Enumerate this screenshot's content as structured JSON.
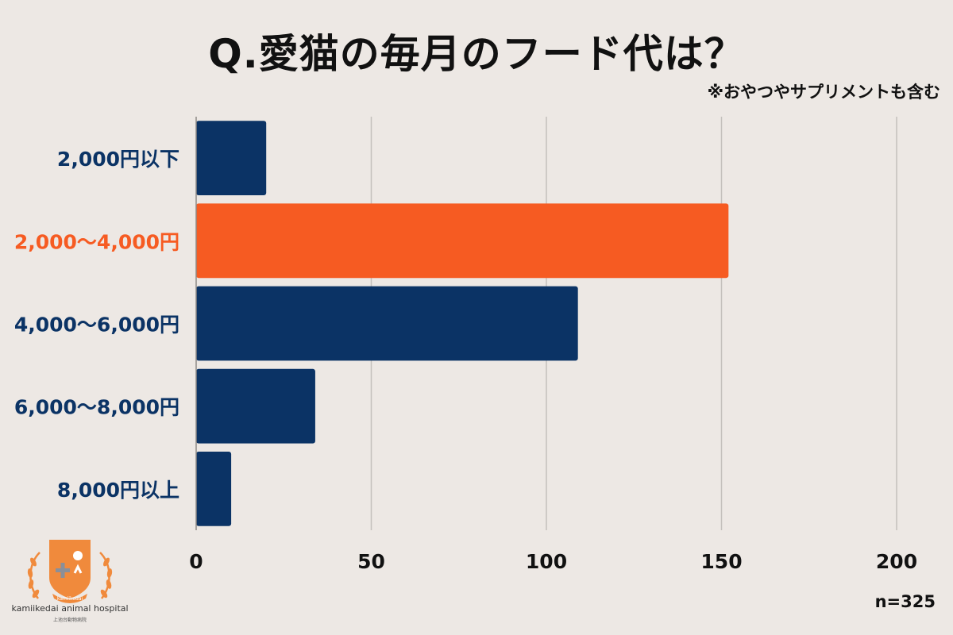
{
  "title": "Q.愛猫の毎月のフード代は？",
  "subtitle": "※おやつやサプリメントも含む",
  "sample_size": "n=325",
  "logo": {
    "name": "kamiikedai animal hospital",
    "name_jp": "上池台動物病院",
    "badge_text": "kamiikedai",
    "icon": "veterinary-shield-cross-icon"
  },
  "colors": {
    "background": "#ede8e4",
    "bar_default": "#0b3365",
    "bar_highlight": "#f65b22",
    "label_default": "#0b3365",
    "label_highlight": "#f65b22",
    "grid": "#c4c0bc",
    "logo": "#f08a3c"
  },
  "chart_data": {
    "type": "bar",
    "orientation": "horizontal",
    "title": "Q.愛猫の毎月のフード代は？",
    "categories": [
      "2,000円以下",
      "2,000〜4,000円",
      "4,000〜6,000円",
      "6,000〜8,000円",
      "8,000円以上"
    ],
    "values": [
      20,
      152,
      109,
      34,
      10
    ],
    "highlight_index": 1,
    "xlim": [
      0,
      200
    ],
    "xticks": [
      0,
      50,
      100,
      150,
      200
    ],
    "xticklabels": [
      "0",
      "50",
      "100",
      "150",
      "200"
    ],
    "grid": true,
    "legend": "none"
  }
}
